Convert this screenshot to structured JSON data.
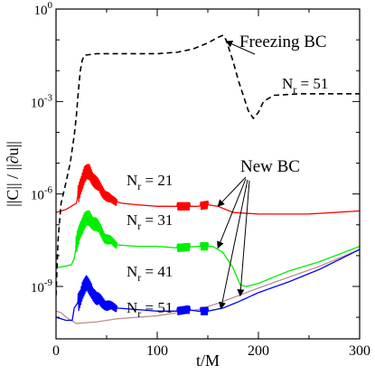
{
  "chart_data": {
    "type": "line",
    "title": "",
    "xlabel": "t/M",
    "ylabel": "||C|| / ||∂u||",
    "xlim": [
      0,
      300
    ],
    "ylim_log10": [
      -10.7,
      0
    ],
    "yscale": "log",
    "grid": false,
    "x_ticks": [
      {
        "value": 0,
        "label": "0"
      },
      {
        "value": 100,
        "label": "100"
      },
      {
        "value": 200,
        "label": "200"
      },
      {
        "value": 300,
        "label": "300"
      }
    ],
    "y_ticks": [
      {
        "exp": 0,
        "label_base": "10",
        "label_exp": "0"
      },
      {
        "exp": -3,
        "label_base": "10",
        "label_exp": "-3"
      },
      {
        "exp": -6,
        "label_base": "10",
        "label_exp": "-6"
      },
      {
        "exp": -9,
        "label_base": "10",
        "label_exp": "-9"
      }
    ],
    "series": [
      {
        "id": "freezing",
        "color": "#000000",
        "dashed": true,
        "points": [
          [
            0,
            -9.3
          ],
          [
            2,
            -7.5
          ],
          [
            5,
            -6.3
          ],
          [
            10,
            -5.6
          ],
          [
            14,
            -5.0
          ],
          [
            18,
            -4.1
          ],
          [
            20,
            -3.5
          ],
          [
            22,
            -2.7
          ],
          [
            24,
            -2.0
          ],
          [
            26,
            -1.65
          ],
          [
            28,
            -1.5
          ],
          [
            40,
            -1.45
          ],
          [
            60,
            -1.45
          ],
          [
            80,
            -1.45
          ],
          [
            100,
            -1.45
          ],
          [
            120,
            -1.4
          ],
          [
            135,
            -1.3
          ],
          [
            150,
            -1.1
          ],
          [
            160,
            -0.92
          ],
          [
            165,
            -0.85
          ],
          [
            168,
            -1.0
          ],
          [
            175,
            -1.7
          ],
          [
            180,
            -2.3
          ],
          [
            185,
            -2.8
          ],
          [
            190,
            -3.3
          ],
          [
            195,
            -3.55
          ],
          [
            200,
            -3.35
          ],
          [
            205,
            -3.0
          ],
          [
            215,
            -2.8
          ],
          [
            240,
            -2.75
          ],
          [
            270,
            -2.75
          ],
          [
            300,
            -2.75
          ]
        ]
      },
      {
        "id": "nr21-new",
        "color": "#ff0000",
        "dashed": false,
        "noisy": [
          22,
          60,
          0.35
        ],
        "points": [
          [
            0,
            -6.6
          ],
          [
            10,
            -6.5
          ],
          [
            20,
            -6.3
          ],
          [
            24,
            -5.7
          ],
          [
            28,
            -5.4
          ],
          [
            33,
            -5.3
          ],
          [
            38,
            -5.55
          ],
          [
            45,
            -5.9
          ],
          [
            55,
            -6.2
          ],
          [
            65,
            -6.3
          ],
          [
            80,
            -6.35
          ],
          [
            100,
            -6.4
          ],
          [
            120,
            -6.4
          ],
          [
            140,
            -6.4
          ],
          [
            150,
            -6.35
          ],
          [
            160,
            -6.4
          ],
          [
            175,
            -6.6
          ],
          [
            200,
            -6.65
          ],
          [
            250,
            -6.65
          ],
          [
            300,
            -6.55
          ]
        ]
      },
      {
        "id": "nr31-new",
        "color": "#00ee00",
        "dashed": false,
        "noisy": [
          20,
          60,
          0.35
        ],
        "points": [
          [
            0,
            -8.4
          ],
          [
            15,
            -8.3
          ],
          [
            18,
            -8.1
          ],
          [
            21,
            -7.5
          ],
          [
            24,
            -7.1
          ],
          [
            28,
            -6.9
          ],
          [
            33,
            -6.8
          ],
          [
            40,
            -7.0
          ],
          [
            48,
            -7.4
          ],
          [
            60,
            -7.65
          ],
          [
            80,
            -7.7
          ],
          [
            100,
            -7.7
          ],
          [
            120,
            -7.75
          ],
          [
            140,
            -7.7
          ],
          [
            155,
            -7.7
          ],
          [
            165,
            -7.9
          ],
          [
            175,
            -8.4
          ],
          [
            182,
            -8.95
          ],
          [
            188,
            -9.0
          ],
          [
            200,
            -8.9
          ],
          [
            230,
            -8.5
          ],
          [
            260,
            -8.2
          ],
          [
            300,
            -7.7
          ]
        ]
      },
      {
        "id": "nr41-new",
        "color": "#0000ff",
        "dashed": false,
        "noisy": [
          22,
          60,
          0.35
        ],
        "points": [
          [
            0,
            -10.0
          ],
          [
            10,
            -10.1
          ],
          [
            16,
            -10.1
          ],
          [
            18,
            -9.7
          ],
          [
            22,
            -9.5
          ],
          [
            26,
            -9.1
          ],
          [
            30,
            -8.95
          ],
          [
            35,
            -9.1
          ],
          [
            40,
            -9.4
          ],
          [
            50,
            -9.6
          ],
          [
            60,
            -9.7
          ],
          [
            80,
            -9.75
          ],
          [
            100,
            -9.8
          ],
          [
            120,
            -9.8
          ],
          [
            130,
            -9.75
          ],
          [
            140,
            -9.8
          ],
          [
            150,
            -9.8
          ],
          [
            165,
            -9.7
          ],
          [
            180,
            -9.5
          ],
          [
            200,
            -9.2
          ],
          [
            230,
            -8.85
          ],
          [
            260,
            -8.45
          ],
          [
            300,
            -7.8
          ]
        ]
      },
      {
        "id": "nr51-new",
        "color": "#bc8f8f",
        "dashed": false,
        "points": [
          [
            0,
            -9.8
          ],
          [
            5,
            -9.85
          ],
          [
            10,
            -10.0
          ],
          [
            20,
            -10.2
          ],
          [
            40,
            -10.15
          ],
          [
            60,
            -10.05
          ],
          [
            80,
            -10.0
          ],
          [
            100,
            -9.95
          ],
          [
            120,
            -9.85
          ],
          [
            140,
            -9.75
          ],
          [
            160,
            -9.55
          ],
          [
            180,
            -9.3
          ],
          [
            200,
            -9.05
          ],
          [
            230,
            -8.7
          ],
          [
            260,
            -8.35
          ],
          [
            300,
            -7.8
          ]
        ]
      }
    ],
    "annotations": {
      "freezing_label": "Freezing BC",
      "newbc_label": "New BC",
      "nr_base": "N",
      "nr_sub": "r",
      "nr51_top": " = 51",
      "nr21": " = 21",
      "nr31": " = 31",
      "nr41": " = 41",
      "nr51": " = 51"
    }
  }
}
